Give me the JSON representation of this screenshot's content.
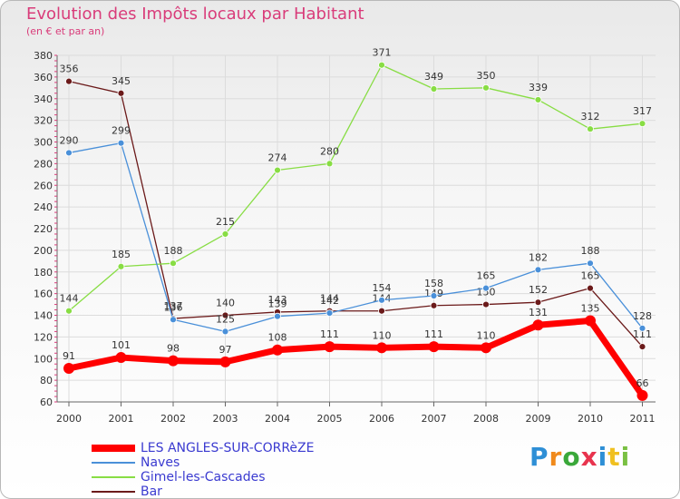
{
  "chart_data": {
    "type": "line",
    "title": "Evolution des Impôts locaux par Habitant",
    "subtitle": "(en € et par an)",
    "categories": [
      "2000",
      "2001",
      "2002",
      "2003",
      "2004",
      "2005",
      "2006",
      "2007",
      "2008",
      "2009",
      "2010",
      "2011"
    ],
    "y_ticks": [
      60,
      80,
      100,
      120,
      140,
      160,
      180,
      200,
      220,
      240,
      260,
      280,
      300,
      320,
      340,
      360,
      380
    ],
    "ylim": [
      60,
      380
    ],
    "grid": true,
    "legend_position": "bottom-left",
    "series": [
      {
        "name": "LES ANGLES-SUR-CORRèZE",
        "color": "#ff0000",
        "values": [
          91,
          101,
          98,
          97,
          108,
          111,
          110,
          111,
          110,
          131,
          135,
          66
        ]
      },
      {
        "name": "Naves",
        "color": "#4a90d9",
        "values": [
          290,
          299,
          136,
          125,
          139,
          142,
          154,
          158,
          165,
          182,
          188,
          128
        ]
      },
      {
        "name": "Gimel-les-Cascades",
        "color": "#88dd44",
        "values": [
          144,
          185,
          188,
          215,
          274,
          280,
          371,
          349,
          350,
          339,
          312,
          317
        ]
      },
      {
        "name": "Bar",
        "color": "#6b1a1a",
        "values": [
          356,
          345,
          137,
          140,
          143,
          144,
          144,
          149,
          150,
          152,
          165,
          111
        ]
      }
    ]
  },
  "logo": {
    "text": "Proxiti",
    "letter_colors": [
      "#2e8fd6",
      "#f08a1c",
      "#3aa83a",
      "#e8344e",
      "#2e8fd6",
      "#f0c020",
      "#7ac043"
    ]
  }
}
